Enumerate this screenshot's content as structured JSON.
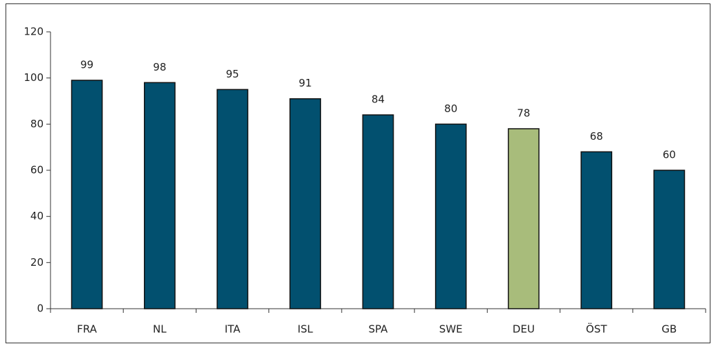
{
  "chart_data": {
    "type": "bar",
    "categories": [
      "FRA",
      "NL",
      "ITA",
      "ISL",
      "SPA",
      "SWE",
      "DEU",
      "ÖST",
      "GB"
    ],
    "values": [
      99,
      98,
      95,
      91,
      84,
      80,
      78,
      68,
      60
    ],
    "colors": [
      "#02506f",
      "#02506f",
      "#02506f",
      "#02506f",
      "#02506f",
      "#02506f",
      "#a8bc7b",
      "#02506f",
      "#02506f"
    ],
    "ylim": [
      0,
      120
    ],
    "yticks": [
      0,
      20,
      40,
      60,
      80,
      100,
      120
    ],
    "grid": false
  }
}
